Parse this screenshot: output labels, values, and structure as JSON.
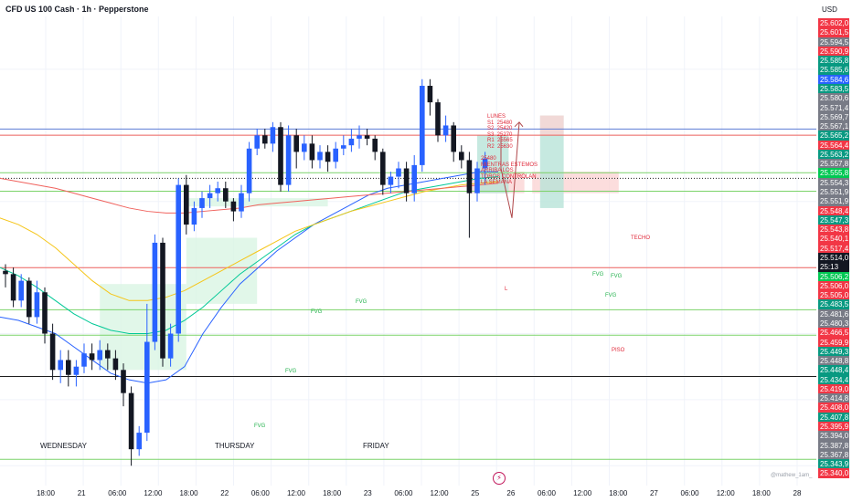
{
  "header": {
    "title": "CFD US 100 Cash · 1h · Pepperstone",
    "currency": "USD"
  },
  "price_axis": {
    "labels": [
      {
        "text": "25.602,0",
        "color": "#f23645"
      },
      {
        "text": "25.601,5",
        "color": "#f23645"
      },
      {
        "text": "25.594,5",
        "color": "#787b86"
      },
      {
        "text": "25.590,9",
        "color": "#f23645"
      },
      {
        "text": "25.585,8",
        "color": "#089981"
      },
      {
        "text": "25.585,6",
        "color": "#089981"
      },
      {
        "text": "25.584,6",
        "color": "#2962ff"
      },
      {
        "text": "25.583,5",
        "color": "#089981"
      },
      {
        "text": "25.580,6",
        "color": "#787b86"
      },
      {
        "text": "25.571,4",
        "color": "#787b86"
      },
      {
        "text": "25.569,7",
        "color": "#787b86"
      },
      {
        "text": "25.567,1",
        "color": "#787b86"
      },
      {
        "text": "25.565,2",
        "color": "#089981"
      },
      {
        "text": "25.564,4",
        "color": "#f23645"
      },
      {
        "text": "25.563,2",
        "color": "#089981"
      },
      {
        "text": "25.557,8",
        "color": "#787b86"
      },
      {
        "text": "25.555,8",
        "color": "#00c853"
      },
      {
        "text": "25.554,3",
        "color": "#787b86"
      },
      {
        "text": "25.551,9",
        "color": "#787b86"
      },
      {
        "text": "25.551,9",
        "color": "#787b86"
      },
      {
        "text": "25.548,4",
        "color": "#f23645"
      },
      {
        "text": "25.547,3",
        "color": "#089981"
      },
      {
        "text": "25.543,8",
        "color": "#f23645"
      },
      {
        "text": "25.540,1",
        "color": "#f23645"
      },
      {
        "text": "25.517,4",
        "color": "#f23645"
      },
      {
        "text": "25.514,0",
        "color": "#131722"
      },
      {
        "text": "25:13",
        "color": "#131722"
      },
      {
        "text": "25.506,2",
        "color": "#00c853"
      },
      {
        "text": "25.506,0",
        "color": "#f23645"
      },
      {
        "text": "25.505,0",
        "color": "#f23645"
      },
      {
        "text": "25.483,5",
        "color": "#089981"
      },
      {
        "text": "25.481,6",
        "color": "#787b86"
      },
      {
        "text": "25.480,3",
        "color": "#787b86"
      },
      {
        "text": "25.466,5",
        "color": "#f23645"
      },
      {
        "text": "25.459,9",
        "color": "#f23645"
      },
      {
        "text": "25.449,3",
        "color": "#089981"
      },
      {
        "text": "25.448,8",
        "color": "#787b86"
      },
      {
        "text": "25.448,4",
        "color": "#089981"
      },
      {
        "text": "25.434,4",
        "color": "#089981"
      },
      {
        "text": "25.419,0",
        "color": "#f23645"
      },
      {
        "text": "25.414,8",
        "color": "#787b86"
      },
      {
        "text": "25.408,0",
        "color": "#f23645"
      },
      {
        "text": "25.407,8",
        "color": "#089981"
      },
      {
        "text": "25.395,9",
        "color": "#f23645"
      },
      {
        "text": "25.394,0",
        "color": "#787b86"
      },
      {
        "text": "25.387,8",
        "color": "#787b86"
      },
      {
        "text": "25.367,8",
        "color": "#787b86"
      },
      {
        "text": "25.343,9",
        "color": "#089981"
      },
      {
        "text": "25.340,0",
        "color": "#f23645"
      }
    ]
  },
  "time_axis": {
    "labels": [
      "18:00",
      "21",
      "06:00",
      "12:00",
      "18:00",
      "22",
      "06:00",
      "12:00",
      "18:00",
      "23",
      "06:00",
      "12:00",
      "25",
      "26",
      "06:00",
      "12:00",
      "18:00",
      "27",
      "06:00",
      "12:00",
      "18:00",
      "28"
    ]
  },
  "day_labels": [
    "WEDNESDAY",
    "THURSDAY",
    "FRIDAY"
  ],
  "annotations": {
    "monday_levels": "LUNES\nS1  25480\nS2  25420\nS3  25270\nR1  25565\nR2  25630",
    "bias_note": "25480\nMIENTRAS ESTEMOS\nARRIBA LOS\nTOROS CONTROLAN\nLA SEMANA",
    "techo": "TECHO",
    "piso": "PISO",
    "fvg": "FVG",
    "target_short": "L"
  },
  "watermark": "@mathew_1am_",
  "chart_data": {
    "type": "candlestick",
    "title": "CFD US 100 Cash · 1h · Pepperstone",
    "currency": "USD",
    "ylim": [
      25328,
      25612
    ],
    "time_ticks": [
      "18:00",
      "21",
      "06:00",
      "12:00",
      "18:00",
      "22",
      "06:00",
      "12:00",
      "18:00",
      "23",
      "06:00",
      "12:00",
      "25",
      "26",
      "06:00",
      "12:00",
      "18:00",
      "27",
      "06:00",
      "12:00",
      "18:00",
      "28"
    ],
    "candles": [
      [
        25458,
        25456,
        25448,
        25462
      ],
      [
        25456,
        25440,
        25436,
        25460
      ],
      [
        25440,
        25452,
        25436,
        25456
      ],
      [
        25452,
        25430,
        25426,
        25454
      ],
      [
        25430,
        25445,
        25426,
        25452
      ],
      [
        25445,
        25420,
        25414,
        25448
      ],
      [
        25420,
        25398,
        25392,
        25426
      ],
      [
        25398,
        25404,
        25390,
        25410
      ],
      [
        25404,
        25395,
        25388,
        25410
      ],
      [
        25395,
        25400,
        25388,
        25404
      ],
      [
        25400,
        25408,
        25396,
        25414
      ],
      [
        25408,
        25404,
        25398,
        25414
      ],
      [
        25404,
        25410,
        25398,
        25416
      ],
      [
        25410,
        25405,
        25398,
        25414
      ],
      [
        25405,
        25398,
        25392,
        25410
      ],
      [
        25398,
        25384,
        25376,
        25402
      ],
      [
        25384,
        25350,
        25340,
        25388
      ],
      [
        25350,
        25360,
        25346,
        25364
      ],
      [
        25360,
        25415,
        25355,
        25438
      ],
      [
        25415,
        25475,
        25410,
        25480
      ],
      [
        25475,
        25405,
        25400,
        25478
      ],
      [
        25405,
        25420,
        25400,
        25426
      ],
      [
        25420,
        25510,
        25415,
        25514
      ],
      [
        25510,
        25486,
        25480,
        25516
      ],
      [
        25486,
        25496,
        25482,
        25500
      ],
      [
        25496,
        25502,
        25490,
        25506
      ],
      [
        25502,
        25505,
        25496,
        25510
      ],
      [
        25505,
        25508,
        25500,
        25512
      ],
      [
        25508,
        25500,
        25496,
        25512
      ],
      [
        25500,
        25494,
        25488,
        25502
      ],
      [
        25494,
        25505,
        25490,
        25510
      ],
      [
        25505,
        25532,
        25500,
        25536
      ],
      [
        25532,
        25540,
        25528,
        25544
      ],
      [
        25540,
        25535,
        25532,
        25544
      ],
      [
        25535,
        25545,
        25530,
        25548
      ],
      [
        25545,
        25510,
        25506,
        25548
      ],
      [
        25510,
        25540,
        25506,
        25546
      ],
      [
        25540,
        25530,
        25520,
        25544
      ],
      [
        25530,
        25535,
        25525,
        25540
      ],
      [
        25535,
        25525,
        25520,
        25540
      ],
      [
        25525,
        25530,
        25520,
        25534
      ],
      [
        25530,
        25524,
        25518,
        25534
      ],
      [
        25524,
        25532,
        25520,
        25536
      ],
      [
        25532,
        25534,
        25528,
        25540
      ],
      [
        25534,
        25538,
        25530,
        25544
      ],
      [
        25538,
        25540,
        25532,
        25546
      ],
      [
        25540,
        25538,
        25534,
        25544
      ],
      [
        25538,
        25530,
        25525,
        25540
      ],
      [
        25530,
        25510,
        25504,
        25532
      ],
      [
        25510,
        25515,
        25505,
        25518
      ],
      [
        25515,
        25520,
        25508,
        25524
      ],
      [
        25520,
        25505,
        25500,
        25524
      ],
      [
        25505,
        25522,
        25500,
        25528
      ],
      [
        25522,
        25570,
        25518,
        25574
      ],
      [
        25570,
        25560,
        25552,
        25574
      ],
      [
        25560,
        25540,
        25536,
        25562
      ],
      [
        25540,
        25546,
        25536,
        25552
      ],
      [
        25546,
        25530,
        25524,
        25548
      ],
      [
        25530,
        25525,
        25520,
        25534
      ],
      [
        25525,
        25505,
        25478,
        25530
      ],
      [
        25505,
        25520,
        25500,
        25524
      ],
      [
        25520,
        25526,
        25510,
        25530
      ]
    ],
    "moving_averages": [
      {
        "color": "#2962ff",
        "values": [
          25430,
          25428,
          25424,
          25420,
          25412,
          25404,
          25396,
          25392,
          25390,
          25392,
          25400,
          25420,
          25436,
          25450,
          25460,
          25470,
          25478,
          25486,
          25492,
          25498,
          25504,
          25508,
          25510,
          25512,
          25514,
          25516,
          25518,
          25518
        ]
      },
      {
        "color": "#00c896",
        "values": [
          25460,
          25455,
          25448,
          25440,
          25432,
          25426,
          25422,
          25420,
          25420,
          25422,
          25428,
          25436,
          25446,
          25456,
          25464,
          25472,
          25480,
          25486,
          25490,
          25494,
          25498,
          25502,
          25506,
          25508,
          25510,
          25512,
          25514,
          25515
        ]
      },
      {
        "color": "#f5c518",
        "values": [
          25490,
          25486,
          25480,
          25472,
          25462,
          25452,
          25444,
          25440,
          25440,
          25442,
          25446,
          25452,
          25458,
          25464,
          25470,
          25476,
          25482,
          25486,
          25490,
          25494,
          25497,
          25500,
          25503,
          25506,
          25508,
          25510,
          25511,
          25512
        ]
      },
      {
        "color": "#f0625d",
        "values": [
          25514,
          25512,
          25510,
          25508,
          25505,
          25502,
          25499,
          25496,
          25494,
          25493,
          25493,
          25494,
          25495,
          25496,
          25498,
          25499,
          25500,
          25501,
          25502,
          25503,
          25504,
          25505,
          25506,
          25507,
          25508,
          25509,
          25510,
          25511
        ]
      }
    ],
    "horizontal_levels": [
      {
        "price": 25543.8,
        "color": "#5b7bd5"
      },
      {
        "price": 25540.1,
        "color": "#f0625d"
      },
      {
        "price": 25517.4,
        "color": "#7bd36a"
      },
      {
        "price": 25514.0,
        "color": "#1e1e1e",
        "style": "dotted"
      },
      {
        "price": 25506.2,
        "color": "#7bd36a"
      },
      {
        "price": 25459.9,
        "color": "#f0625d"
      },
      {
        "price": 25434.4,
        "color": "#7bd36a"
      },
      {
        "price": 25419.0,
        "color": "#7bd36a"
      },
      {
        "price": 25394.0,
        "color": "#1e1e1e"
      },
      {
        "price": 25343.9,
        "color": "#7bd36a"
      }
    ],
    "zones": [
      {
        "t0": 12,
        "t1": 23,
        "y0": 25450,
        "y1": 25398,
        "color": "#d9f5e3"
      },
      {
        "t0": 23,
        "t1": 41,
        "y0": 25502,
        "y1": 25497,
        "color": "#d9f5e3"
      },
      {
        "t0": 23,
        "t1": 32,
        "y0": 25478,
        "y1": 25438,
        "color": "#d9f5e3"
      },
      {
        "t0": 59,
        "t1": 66,
        "y0": 25518,
        "y1": 25505,
        "color": "#fbd5d5"
      },
      {
        "t0": 60,
        "t1": 64,
        "y0": 25540,
        "y1": 25505,
        "color": "#b8e3d8"
      },
      {
        "t0": 67,
        "t1": 78,
        "y0": 25518,
        "y1": 25505,
        "color": "#fbd5d5"
      },
      {
        "t0": 68,
        "t1": 71,
        "y0": 25552,
        "y1": 25496,
        "color": "#b8e3d8"
      },
      {
        "t0": 68,
        "t1": 71,
        "y0": 25552,
        "y1": 25540,
        "color": "#fbd5d5"
      }
    ]
  }
}
